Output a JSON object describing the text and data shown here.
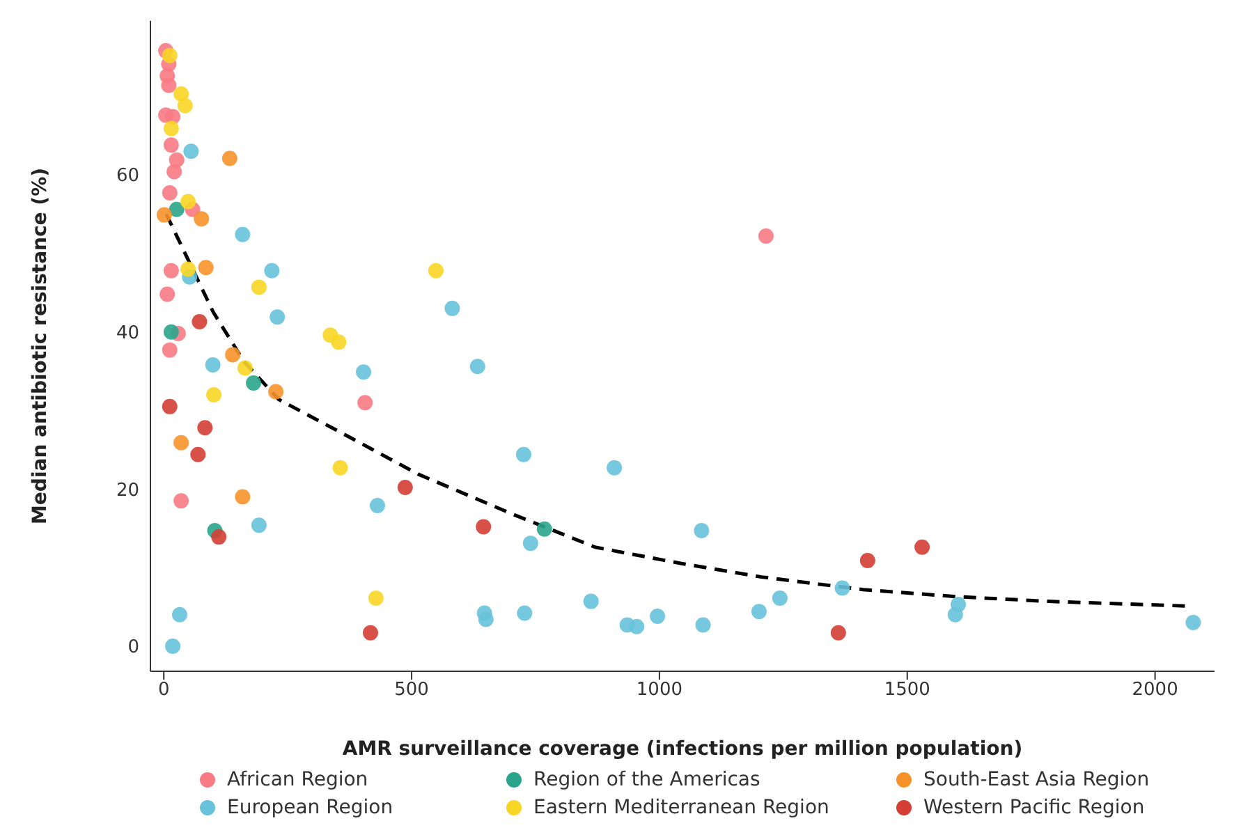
{
  "chart_data": {
    "type": "scatter",
    "xlabel": "AMR surveillance coverage (infections per million population)",
    "ylabel": "Median antibiotic resistance (%)",
    "xlim": [
      -27,
      2120
    ],
    "ylim": [
      -3.2,
      79.6
    ],
    "xticks": [
      0,
      500,
      1000,
      1500,
      2000
    ],
    "yticks": [
      0,
      20,
      40,
      60
    ],
    "grid": false,
    "legend": "bottom",
    "marker": "circle",
    "series": [
      {
        "name": "African Region",
        "color": "#f87a84",
        "x": [
          4,
          10,
          7,
          10,
          4,
          18,
          15,
          26,
          21,
          12,
          58,
          15,
          7,
          29,
          12,
          406,
          35,
          1215
        ],
        "values": [
          75.8,
          74.1,
          72.6,
          71.4,
          67.6,
          67.4,
          63.8,
          61.9,
          60.4,
          57.7,
          55.6,
          47.8,
          44.8,
          39.8,
          37.7,
          31.0,
          18.5,
          52.2
        ]
      },
      {
        "name": "Region of the Americas",
        "color": "#2aa58c",
        "x": [
          26,
          15,
          181,
          103,
          768
        ],
        "values": [
          55.6,
          40.0,
          33.5,
          14.7,
          14.9
        ]
      },
      {
        "name": "South-East Asia Region",
        "color": "#f7922b",
        "x": [
          133,
          1,
          76,
          85,
          139,
          226,
          35,
          159
        ],
        "values": [
          62.1,
          54.9,
          54.4,
          48.2,
          37.1,
          32.4,
          25.9,
          19.0
        ]
      },
      {
        "name": "European Region",
        "color": "#67c2da",
        "x": [
          55,
          159,
          52,
          218,
          229,
          99,
          403,
          582,
          633,
          192,
          431,
          726,
          909,
          740,
          1085,
          32,
          18,
          647,
          650,
          728,
          862,
          935,
          954,
          996,
          1088,
          1201,
          1243,
          1369,
          1597,
          1603,
          2077
        ],
        "values": [
          63.0,
          52.4,
          47.0,
          47.8,
          41.9,
          35.8,
          34.9,
          43.0,
          35.6,
          15.4,
          17.9,
          24.4,
          22.7,
          13.1,
          14.7,
          4.0,
          0.0,
          4.2,
          3.4,
          4.2,
          5.7,
          2.7,
          2.5,
          3.8,
          2.7,
          4.4,
          6.1,
          7.4,
          4.0,
          5.3,
          3.0
        ]
      },
      {
        "name": "Eastern Mediterranean Region",
        "color": "#f9d626",
        "x": [
          12,
          35,
          43,
          15,
          49,
          49,
          192,
          336,
          353,
          164,
          101,
          356,
          549,
          428
        ],
        "values": [
          75.2,
          70.3,
          68.8,
          65.9,
          56.6,
          48.0,
          45.7,
          39.6,
          38.7,
          35.4,
          32.0,
          22.7,
          47.8,
          6.1
        ]
      },
      {
        "name": "Western Pacific Region",
        "color": "#d43e35",
        "x": [
          72,
          12,
          83,
          69,
          111,
          487,
          645,
          417,
          1420,
          1530,
          1361
        ],
        "values": [
          41.3,
          30.5,
          27.8,
          24.4,
          13.9,
          20.2,
          15.2,
          1.7,
          10.9,
          12.6,
          1.7
        ]
      },
      {
        "type": "line",
        "color": "#000000",
        "line_style": "dashed",
        "marker": "none",
        "x": [
          5,
          52,
          100,
          162,
          232,
          372,
          513,
          704,
          870,
          1046,
          1206,
          1411,
          1600,
          1785,
          2066
        ],
        "values": [
          55.0,
          48.8,
          42.5,
          36.2,
          31.4,
          26.7,
          21.9,
          16.8,
          12.6,
          10.5,
          8.8,
          7.2,
          6.3,
          5.7,
          5.1
        ]
      }
    ]
  }
}
